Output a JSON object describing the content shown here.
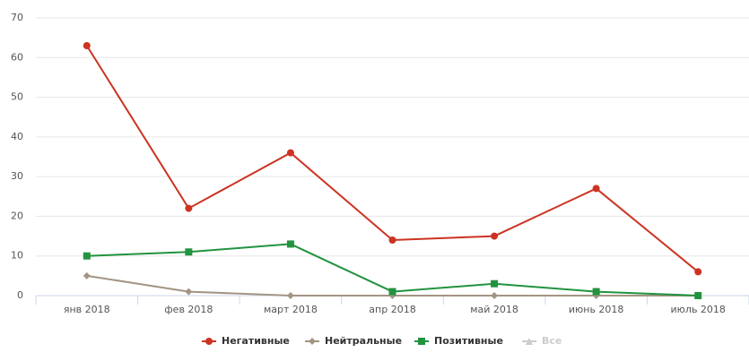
{
  "chart_data": {
    "type": "line",
    "categories": [
      "янв 2018",
      "фев 2018",
      "март 2018",
      "апр 2018",
      "май 2018",
      "июнь 2018",
      "июль 2018"
    ],
    "series": [
      {
        "name": "Негативные",
        "color": "#cc3322",
        "marker": "circle",
        "visible": true,
        "values": [
          63,
          22,
          36,
          14,
          15,
          27,
          6
        ]
      },
      {
        "name": "Нейтральные",
        "color": "#a39584",
        "marker": "diamond",
        "visible": true,
        "values": [
          5,
          1,
          0,
          0,
          0,
          0,
          0
        ]
      },
      {
        "name": "Позитивные",
        "color": "#22933f",
        "marker": "square",
        "visible": true,
        "values": [
          10,
          11,
          13,
          1,
          3,
          1,
          0
        ]
      },
      {
        "name": "Все",
        "color": "#d9d2c5",
        "marker": "triangle",
        "visible": false,
        "values": [
          null,
          null,
          null,
          null,
          null,
          null,
          null
        ]
      }
    ],
    "ylim": [
      0,
      70
    ],
    "yticks": [
      0,
      10,
      20,
      30,
      40,
      50,
      60,
      70
    ],
    "grid": true
  }
}
